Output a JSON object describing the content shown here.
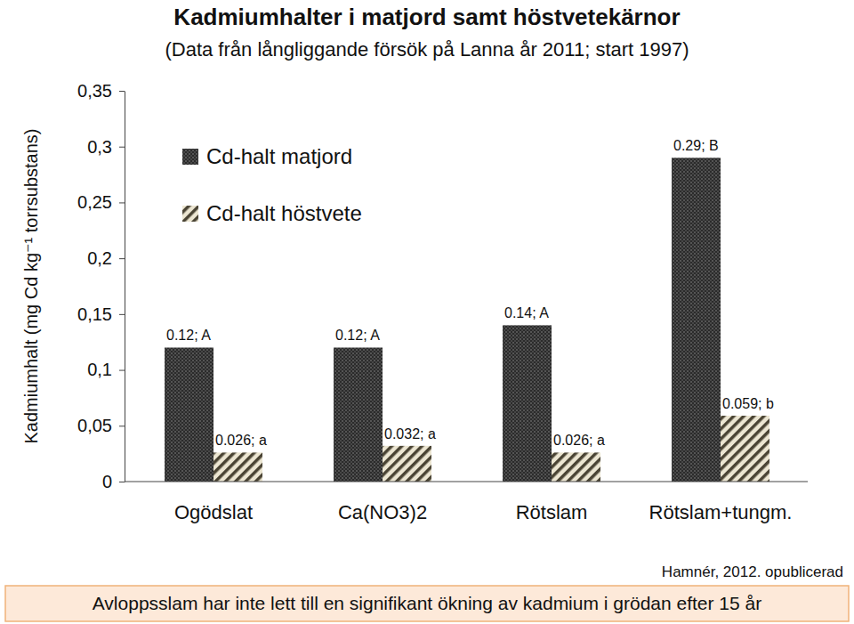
{
  "chart_data": {
    "type": "bar",
    "title": "Kadmiumhalter i matjord samt höstvetekärnor",
    "subtitle": "(Data från långliggande försök på Lanna år 2011; start 1997)",
    "ylabel": "Kadmiumhalt (mg Cd kg⁻¹ torrsubstans)",
    "categories": [
      "Ogödslat",
      "Ca(NO3)2",
      "Rötslam",
      "Rötslam+tungm."
    ],
    "series": [
      {
        "name": "Cd-halt matjord",
        "color": "#2b2b2b",
        "values": [
          0.12,
          0.12,
          0.14,
          0.29
        ],
        "value_labels": [
          "0.12; A",
          "0.12; A",
          "0.14; A",
          "0.29; B"
        ]
      },
      {
        "name": "Cd-halt höstvete",
        "color": "#4a4434",
        "values": [
          0.026,
          0.032,
          0.026,
          0.059
        ],
        "value_labels": [
          "0.026; a",
          "0.032; a",
          "0.026; a",
          "0.059; b"
        ]
      }
    ],
    "ylim": [
      0,
      0.35
    ],
    "yticks": [
      0,
      {
        "value": 0.05,
        "label": "0,05"
      },
      {
        "value": 0.1,
        "label": "0,1"
      },
      {
        "value": 0.15,
        "label": "0,15"
      },
      {
        "value": 0.2,
        "label": "0,2"
      },
      {
        "value": 0.25,
        "label": "0,25"
      },
      {
        "value": 0.3,
        "label": "0,3"
      },
      {
        "value": 0.35,
        "label": "0,35"
      }
    ],
    "grid": false,
    "legend": "top-left",
    "data_labels": true,
    "annotations": [
      "Hamnér, 2012. opublicerad",
      "Avloppsslam har inte lett till en signifikant ökning av kadmium i grödan efter 15 år"
    ]
  }
}
